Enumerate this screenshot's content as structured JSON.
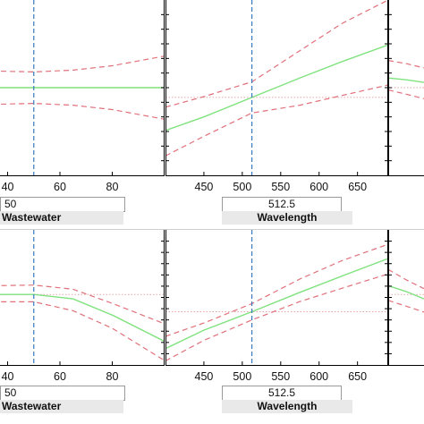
{
  "colors": {
    "prediction": "#7fe27f",
    "bounds": "#e0707a",
    "reference": "#e7a5aa",
    "current_value": "#3a78c0",
    "axis": "#000000"
  },
  "rows": [
    {
      "controls": {
        "wastewater_value": "50",
        "wastewater_name": "Wastewater",
        "wavelength_value": "512.5",
        "wavelength_name": "Wavelength"
      }
    },
    {
      "controls": {
        "wastewater_value": "50",
        "wastewater_name": "Wastewater",
        "wavelength_value": "512.5",
        "wavelength_name": "Wavelength"
      }
    }
  ],
  "chart_data": [
    {
      "type": "line",
      "panel": "row1-wastewater",
      "x_ticks": [
        "40",
        "60",
        "80"
      ],
      "xlim": [
        7,
        100
      ],
      "current_x": 50,
      "reference_y": 0.0,
      "x": [
        7,
        20,
        35,
        50,
        65,
        80,
        100
      ],
      "series": [
        {
          "role": "prediction",
          "values": [
            0.0,
            0.0,
            0.0,
            0.0,
            0.0,
            0.0,
            0.0
          ]
        },
        {
          "role": "upper-bound",
          "values": [
            0.62,
            0.48,
            0.38,
            0.36,
            0.4,
            0.5,
            0.72
          ]
        },
        {
          "role": "lower-bound",
          "values": [
            -0.62,
            -0.48,
            -0.38,
            -0.36,
            -0.4,
            -0.5,
            -0.72
          ]
        }
      ]
    },
    {
      "type": "line",
      "panel": "row1-wavelength",
      "x_ticks": [
        "450",
        "500",
        "550",
        "600",
        "650"
      ],
      "xlim": [
        400,
        690
      ],
      "current_x": 512.5,
      "reference_y": 0.0,
      "x": [
        400,
        450,
        512.5,
        575,
        630,
        690
      ],
      "series": [
        {
          "role": "prediction",
          "values": [
            -0.85,
            -0.5,
            0.0,
            0.5,
            0.92,
            1.35
          ]
        },
        {
          "role": "upper-bound",
          "values": [
            -0.25,
            0.02,
            0.4,
            1.2,
            1.9,
            2.5
          ]
        },
        {
          "role": "lower-bound",
          "values": [
            -1.5,
            -1.0,
            -0.4,
            -0.2,
            0.05,
            0.32
          ]
        }
      ]
    },
    {
      "type": "line",
      "panel": "row2-wastewater",
      "x_ticks": [
        "40",
        "60",
        "80"
      ],
      "xlim": [
        7,
        100
      ],
      "current_x": 50,
      "reference_y": 0.0,
      "x": [
        7,
        20,
        35,
        50,
        65,
        80,
        100
      ],
      "series": [
        {
          "role": "prediction",
          "values": [
            -0.2,
            -0.08,
            0.0,
            0.0,
            -0.15,
            -0.7,
            -1.6
          ]
        },
        {
          "role": "upper-bound",
          "values": [
            0.08,
            0.2,
            0.3,
            0.32,
            0.18,
            -0.3,
            -1.0
          ]
        },
        {
          "role": "lower-bound",
          "values": [
            -0.55,
            -0.35,
            -0.25,
            -0.25,
            -0.55,
            -1.15,
            -2.25
          ]
        }
      ]
    },
    {
      "type": "line",
      "panel": "row2-wavelength",
      "x_ticks": [
        "450",
        "500",
        "550",
        "600",
        "650"
      ],
      "xlim": [
        400,
        690
      ],
      "current_x": 512.5,
      "reference_y": 0.0,
      "x": [
        400,
        450,
        512.5,
        575,
        630,
        690
      ],
      "series": [
        {
          "role": "prediction",
          "values": [
            -1.8,
            -0.9,
            0.0,
            0.95,
            1.75,
            2.6
          ]
        },
        {
          "role": "upper-bound",
          "values": [
            -1.2,
            -0.55,
            0.4,
            1.6,
            2.5,
            3.3
          ]
        },
        {
          "role": "lower-bound",
          "values": [
            -2.4,
            -1.4,
            -0.4,
            0.5,
            1.15,
            1.85
          ]
        }
      ]
    },
    {
      "type": "line",
      "panel": "row1-partial-right",
      "current_x": null,
      "reference_y": 0.0,
      "x": [
        0,
        0.5,
        1
      ],
      "series": [
        {
          "role": "prediction",
          "values": [
            0.22,
            0.18,
            0.12
          ]
        },
        {
          "role": "upper-bound",
          "values": [
            0.62,
            0.55,
            0.45
          ]
        },
        {
          "role": "lower-bound",
          "values": [
            -0.05,
            -0.15,
            -0.25
          ]
        }
      ]
    },
    {
      "type": "line",
      "panel": "row2-partial-right",
      "current_x": null,
      "reference_y": 0.0,
      "x": [
        0,
        0.5,
        1
      ],
      "series": [
        {
          "role": "prediction",
          "values": [
            0.3,
            0.1,
            -0.15
          ]
        },
        {
          "role": "upper-bound",
          "values": [
            0.85,
            0.5,
            0.2
          ]
        },
        {
          "role": "lower-bound",
          "values": [
            -0.2,
            -0.4,
            -0.6
          ]
        }
      ]
    }
  ]
}
